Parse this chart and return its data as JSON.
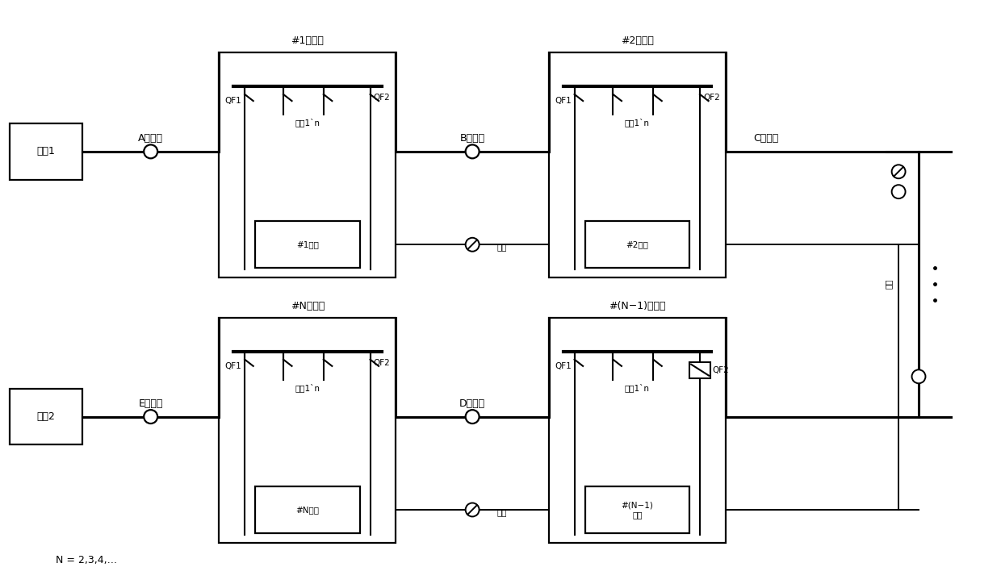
{
  "bg_color": "#ffffff",
  "line_color": "#000000",
  "fig_width": 12.4,
  "fig_height": 7.24,
  "dpi": 100,
  "top_cabinet1_label": "#1环网柜",
  "top_cabinet2_label": "#2环网柜",
  "bot_cabinetN_label": "#N环网柜",
  "bot_cabinetN1_label": "#(N−1)环网柜",
  "inlet1_label": "进线1",
  "inlet2_label": "进线2",
  "segA_label": "A段线路",
  "segB_label": "B段线路",
  "segC_label": "C段线路",
  "segD_label": "D段线路",
  "segE_label": "E段线路",
  "fiber_label": "光缆",
  "terminal1_label": "#1终端",
  "terminal2_label": "#2终端",
  "terminalN_label": "#N终端",
  "terminalN1_label": "#(N−1)\n终端",
  "qf1_label": "QF1",
  "qf2_label": "QF2",
  "outlines_label": "出线1`n",
  "N_eq_label": "N = 2,3,4,…",
  "font_size": 9,
  "font_size_small": 7.5,
  "font_size_large": 10
}
